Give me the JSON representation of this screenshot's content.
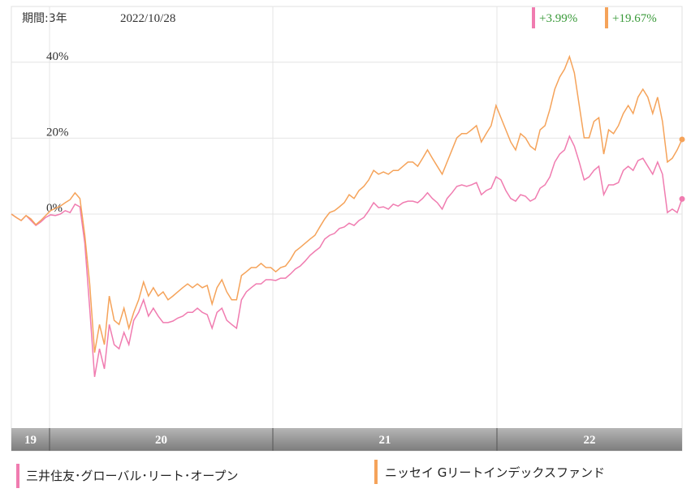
{
  "chart_data": {
    "type": "line",
    "period_label": "期間:3年",
    "date": "2022/10/28",
    "ylim": [
      -56.4,
      54.7
    ],
    "yticks": [
      {
        "value": 40,
        "label": "40%"
      },
      {
        "value": 20,
        "label": "20%"
      },
      {
        "value": 0,
        "label": "0%"
      }
    ],
    "grid": true,
    "x_axis_labels": [
      "19",
      "20",
      "21",
      "22"
    ],
    "series": [
      {
        "name": "三井住友･グローバル･リート･オープン",
        "color": "#f07cb0",
        "end_label": "+3.99%",
        "values": [
          0,
          -0.9,
          -1.7,
          -0.4,
          -1.7,
          -3.0,
          -2.1,
          -0.9,
          -0.2,
          -0.4,
          0,
          0.9,
          0.4,
          2.6,
          1.9,
          -7.7,
          -24.8,
          -42.9,
          -35.5,
          -40.8,
          -29.1,
          -34.4,
          -35.5,
          -31.2,
          -34.4,
          -28.0,
          -25.9,
          -22.6,
          -26.9,
          -24.8,
          -26.9,
          -28.6,
          -28.6,
          -28.2,
          -27.4,
          -26.9,
          -25.9,
          -25.9,
          -24.8,
          -25.9,
          -26.5,
          -30.1,
          -25.9,
          -24.8,
          -28.0,
          -29.1,
          -30.1,
          -22.6,
          -20.5,
          -19.4,
          -18.4,
          -18.4,
          -17.3,
          -17.3,
          -17.5,
          -16.9,
          -16.9,
          -15.8,
          -14.5,
          -13.7,
          -12.4,
          -10.9,
          -9.8,
          -8.8,
          -6.6,
          -5.6,
          -5.1,
          -3.8,
          -3.4,
          -2.4,
          -3.0,
          -1.7,
          -0.9,
          0.9,
          3.0,
          1.7,
          1.9,
          1.3,
          2.6,
          2.1,
          3.0,
          3.4,
          3.4,
          3.0,
          4.1,
          5.6,
          4.1,
          3.0,
          1.3,
          4.1,
          5.6,
          7.3,
          7.7,
          7.3,
          7.7,
          8.3,
          5.1,
          6.2,
          6.8,
          9.8,
          9.0,
          6.2,
          4.1,
          3.4,
          5.1,
          4.7,
          3.4,
          4.1,
          6.8,
          7.7,
          9.8,
          13.7,
          15.8,
          16.9,
          20.5,
          17.9,
          13.7,
          9.0,
          9.8,
          11.5,
          12.6,
          5.1,
          7.7,
          7.7,
          8.3,
          11.5,
          12.6,
          11.5,
          14.1,
          14.7,
          12.6,
          10.5,
          13.7,
          10.5,
          0.4,
          1.3,
          0.4,
          3.99
        ]
      },
      {
        "name": "ニッセイ Gリートインデックスファンド",
        "color": "#f5a35a",
        "end_label": "+19.67%",
        "values": [
          0,
          -0.9,
          -1.7,
          -0.4,
          -1.3,
          -2.8,
          -1.7,
          -0.4,
          0.9,
          1.5,
          2.1,
          3.0,
          3.8,
          5.6,
          4.1,
          -5.6,
          -18.4,
          -36.5,
          -29.1,
          -34.4,
          -21.6,
          -28.0,
          -29.1,
          -24.8,
          -30.1,
          -25.9,
          -22.6,
          -17.9,
          -21.6,
          -19.4,
          -21.6,
          -20.5,
          -22.6,
          -21.6,
          -20.5,
          -19.4,
          -18.4,
          -19.4,
          -18.4,
          -19.4,
          -18.8,
          -23.7,
          -19.4,
          -17.3,
          -20.5,
          -22.6,
          -22.6,
          -16.2,
          -15.2,
          -14.1,
          -14.1,
          -13.0,
          -14.1,
          -14.1,
          -15.2,
          -14.1,
          -13.7,
          -12.0,
          -9.8,
          -8.8,
          -7.7,
          -6.6,
          -5.6,
          -3.4,
          -1.3,
          0.4,
          0.9,
          1.9,
          3.0,
          5.1,
          4.1,
          6.2,
          7.3,
          9.0,
          11.5,
          10.5,
          11.1,
          10.5,
          11.5,
          11.5,
          12.6,
          13.7,
          13.7,
          12.6,
          14.7,
          16.9,
          14.7,
          12.6,
          10.5,
          13.7,
          16.9,
          20.1,
          21.2,
          21.2,
          22.2,
          23.3,
          19.0,
          21.2,
          23.3,
          28.6,
          25.4,
          22.2,
          19.0,
          16.9,
          21.2,
          20.1,
          17.9,
          16.9,
          22.2,
          23.3,
          27.6,
          32.9,
          36.1,
          38.2,
          41.5,
          37.2,
          28.6,
          20.1,
          20.1,
          24.4,
          25.4,
          15.8,
          22.2,
          21.2,
          23.3,
          26.5,
          28.6,
          26.5,
          30.8,
          32.9,
          30.8,
          26.5,
          30.8,
          24.4,
          13.7,
          14.7,
          16.9,
          19.67
        ]
      }
    ]
  }
}
